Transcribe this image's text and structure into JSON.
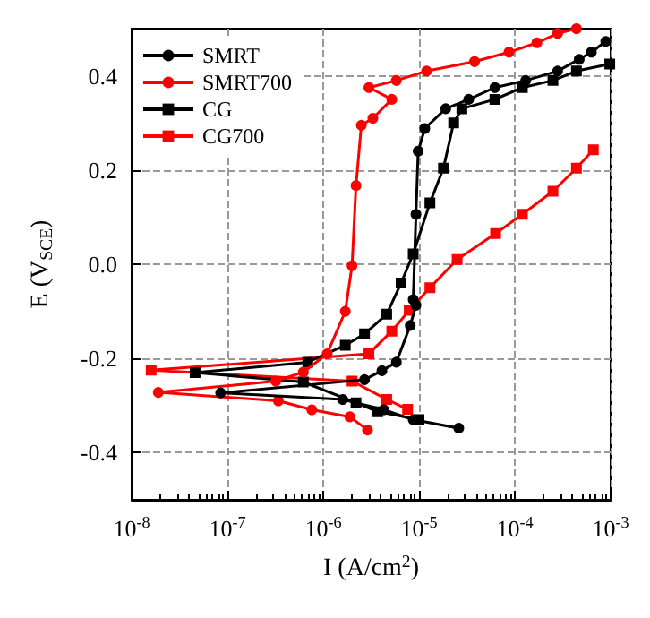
{
  "chart_data": {
    "type": "line",
    "xlabel": "I (A/cm$^{2}$)",
    "ylabel": "E (V$_{SCE}$)",
    "log": "x",
    "xlim": [
      1e-08,
      0.001
    ],
    "ylim": [
      -0.5,
      0.5
    ],
    "xticks": [
      {
        "value": 1e-08,
        "label": "10$^{-8}$"
      },
      {
        "value": 1e-07,
        "label": "10$^{-7}$"
      },
      {
        "value": 1e-06,
        "label": "10$^{-6}$"
      },
      {
        "value": 1e-05,
        "label": "10$^{-5}$"
      },
      {
        "value": 0.0001,
        "label": "10$^{-4}$"
      },
      {
        "value": 0.001,
        "label": "10$^{-3}$"
      }
    ],
    "yticks": [
      -0.4,
      -0.2,
      {
        "value": 0,
        "label": "0.0"
      },
      0.2,
      0.4
    ],
    "grid": true,
    "legend": "top left",
    "series": [
      {
        "name": "SMRT",
        "color": "#000000",
        "marker": "circle",
        "x": [
          2.6e-05,
          8.7e-06,
          4.3e-06,
          1.6e-06,
          8.5e-08,
          2.7e-06,
          4.1e-06,
          5.8e-06,
          8.1e-06,
          9.3e-06,
          8.7e-06,
          9.3e-06,
          9.8e-06,
          1.15e-05,
          1.9e-05,
          3.3e-05,
          6.2e-05,
          0.00013,
          0.00028,
          0.00047,
          0.00063,
          0.00089
        ],
        "values": [
          -0.348,
          -0.33,
          -0.309,
          -0.287,
          -0.273,
          -0.245,
          -0.226,
          -0.208,
          -0.13,
          -0.087,
          -0.075,
          0.106,
          0.24,
          0.288,
          0.33,
          0.35,
          0.375,
          0.39,
          0.41,
          0.435,
          0.45,
          0.473
        ]
      },
      {
        "name": "SMRT700",
        "color": "#ff0000",
        "marker": "circle",
        "x": [
          2.9e-06,
          1.9e-06,
          7.6e-07,
          3.4e-07,
          1.9e-08,
          3.2e-07,
          6.2e-07,
          1.1e-06,
          1.7e-06,
          2e-06,
          2.2e-06,
          2.5e-06,
          3.3e-06,
          5.2e-06,
          3e-06,
          5.8e-06,
          1.2e-05,
          3.8e-05,
          8.7e-05,
          0.00017,
          0.00028,
          0.00044
        ],
        "values": [
          -0.352,
          -0.324,
          -0.309,
          -0.29,
          -0.272,
          -0.248,
          -0.229,
          -0.19,
          -0.1,
          -0.003,
          0.167,
          0.295,
          0.31,
          0.35,
          0.375,
          0.39,
          0.41,
          0.43,
          0.45,
          0.47,
          0.49,
          0.5
        ]
      },
      {
        "name": "CG",
        "color": "#000000",
        "marker": "square",
        "x": [
          1e-05,
          3.7e-06,
          2.2e-06,
          6.2e-07,
          4.6e-08,
          6.9e-07,
          1.7e-06,
          2.7e-06,
          4.6e-06,
          6.5e-06,
          8.7e-06,
          1.3e-05,
          1.8e-05,
          2.3e-05,
          2.8e-05,
          6.2e-05,
          0.00012,
          0.00025,
          0.00044,
          0.00098
        ],
        "values": [
          -0.33,
          -0.313,
          -0.294,
          -0.25,
          -0.23,
          -0.208,
          -0.172,
          -0.148,
          -0.106,
          -0.04,
          0.022,
          0.13,
          0.204,
          0.3,
          0.33,
          0.35,
          0.375,
          0.39,
          0.41,
          0.425
        ]
      },
      {
        "name": "CG700",
        "color": "#ff0000",
        "marker": "square",
        "x": [
          7.6e-06,
          4.6e-06,
          2e-06,
          1.6e-08,
          3e-06,
          5.2e-06,
          7.9e-06,
          1.3e-05,
          2.5e-05,
          6.3e-05,
          0.00012,
          0.00025,
          0.00044,
          0.00066
        ],
        "values": [
          -0.308,
          -0.287,
          -0.248,
          -0.225,
          -0.19,
          -0.142,
          -0.098,
          -0.05,
          0.01,
          0.065,
          0.106,
          0.155,
          0.204,
          0.243
        ]
      }
    ]
  }
}
